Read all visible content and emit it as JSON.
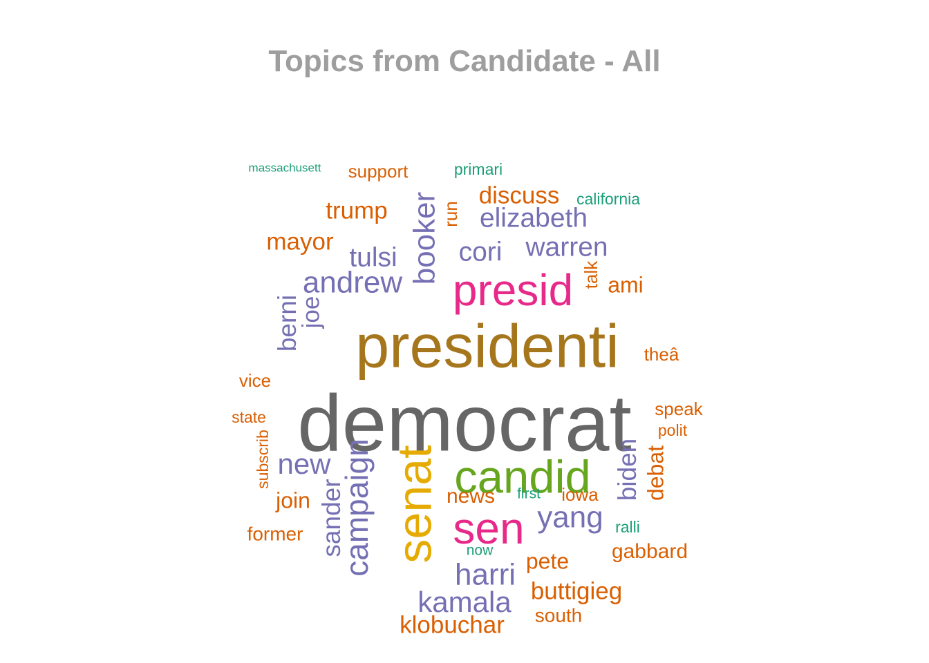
{
  "chart_data": {
    "type": "wordcloud",
    "title": "Topics from Candidate - All",
    "palette": {
      "gray": "#666666",
      "brown": "#a6761d",
      "magenta": "#e7298a",
      "green": "#66a61e",
      "gold": "#e6ab02",
      "purple": "#7570b3",
      "orange": "#d95f02",
      "teal": "#1b9e77"
    },
    "words": [
      {
        "text": "democrat",
        "weight": 100,
        "color": "gray"
      },
      {
        "text": "presidenti",
        "weight": 76,
        "color": "brown"
      },
      {
        "text": "presid",
        "weight": 55,
        "color": "magenta"
      },
      {
        "text": "candid",
        "weight": 58,
        "color": "green"
      },
      {
        "text": "senat",
        "weight": 60,
        "color": "gold"
      },
      {
        "text": "sen",
        "weight": 55,
        "color": "magenta"
      },
      {
        "text": "andrew",
        "weight": 38,
        "color": "purple"
      },
      {
        "text": "campaign",
        "weight": 40,
        "color": "purple"
      },
      {
        "text": "booker",
        "weight": 38,
        "color": "purple"
      },
      {
        "text": "tulsi",
        "weight": 34,
        "color": "purple"
      },
      {
        "text": "elizabeth",
        "weight": 34,
        "color": "purple"
      },
      {
        "text": "cori",
        "weight": 34,
        "color": "purple"
      },
      {
        "text": "warren",
        "weight": 34,
        "color": "purple"
      },
      {
        "text": "yang",
        "weight": 38,
        "color": "purple"
      },
      {
        "text": "harri",
        "weight": 38,
        "color": "purple"
      },
      {
        "text": "kamala",
        "weight": 36,
        "color": "purple"
      },
      {
        "text": "new",
        "weight": 36,
        "color": "purple"
      },
      {
        "text": "berni",
        "weight": 32,
        "color": "purple"
      },
      {
        "text": "joe",
        "weight": 30,
        "color": "purple"
      },
      {
        "text": "sander",
        "weight": 32,
        "color": "purple"
      },
      {
        "text": "biden",
        "weight": 32,
        "color": "purple"
      },
      {
        "text": "trump",
        "weight": 30,
        "color": "orange"
      },
      {
        "text": "mayor",
        "weight": 30,
        "color": "orange"
      },
      {
        "text": "discuss",
        "weight": 30,
        "color": "orange"
      },
      {
        "text": "ami",
        "weight": 28,
        "color": "orange"
      },
      {
        "text": "klobuchar",
        "weight": 30,
        "color": "orange"
      },
      {
        "text": "buttigieg",
        "weight": 30,
        "color": "orange"
      },
      {
        "text": "pete",
        "weight": 28,
        "color": "orange"
      },
      {
        "text": "join",
        "weight": 28,
        "color": "orange"
      },
      {
        "text": "debat",
        "weight": 28,
        "color": "orange"
      },
      {
        "text": "gabbard",
        "weight": 26,
        "color": "orange"
      },
      {
        "text": "news",
        "weight": 26,
        "color": "orange"
      },
      {
        "text": "south",
        "weight": 24,
        "color": "orange"
      },
      {
        "text": "former",
        "weight": 24,
        "color": "orange"
      },
      {
        "text": "iowa",
        "weight": 22,
        "color": "orange"
      },
      {
        "text": "run",
        "weight": 22,
        "color": "orange"
      },
      {
        "text": "talk",
        "weight": 22,
        "color": "orange"
      },
      {
        "text": "vice",
        "weight": 22,
        "color": "orange"
      },
      {
        "text": "support",
        "weight": 22,
        "color": "orange"
      },
      {
        "text": "speak",
        "weight": 22,
        "color": "orange"
      },
      {
        "text": "theâ",
        "weight": 22,
        "color": "orange"
      },
      {
        "text": "state",
        "weight": 20,
        "color": "orange"
      },
      {
        "text": "subscrib",
        "weight": 20,
        "color": "orange"
      },
      {
        "text": "polit",
        "weight": 20,
        "color": "orange"
      },
      {
        "text": "primari",
        "weight": 20,
        "color": "teal"
      },
      {
        "text": "california",
        "weight": 20,
        "color": "teal"
      },
      {
        "text": "massachusett",
        "weight": 15,
        "color": "teal"
      },
      {
        "text": "ralli",
        "weight": 20,
        "color": "teal"
      },
      {
        "text": "first",
        "weight": 18,
        "color": "teal"
      },
      {
        "text": "now",
        "weight": 18,
        "color": "teal"
      }
    ]
  }
}
